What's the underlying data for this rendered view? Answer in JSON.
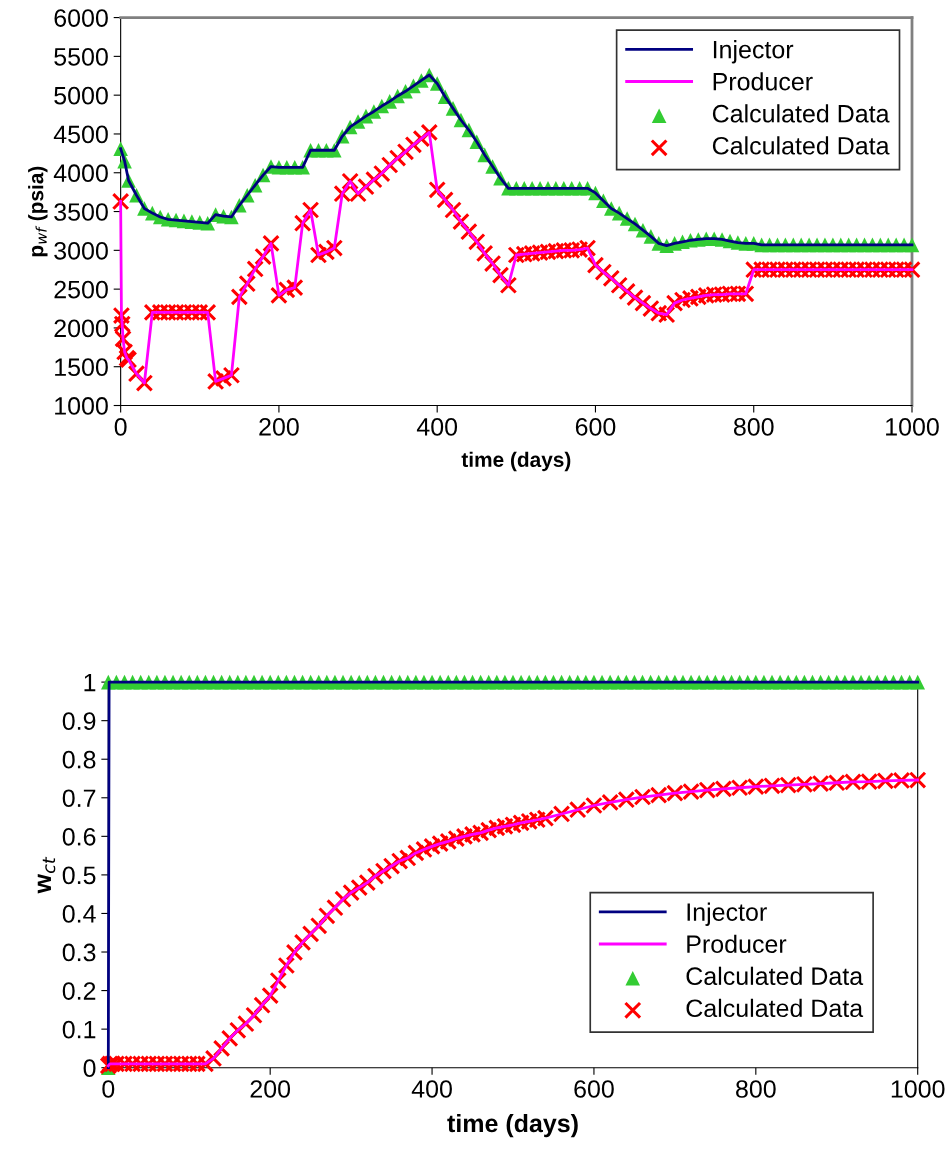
{
  "chart_data": [
    {
      "type": "line",
      "xlabel": "time (days)",
      "ylabel": "p$_{wf}$ (psia)",
      "xlim": [
        0,
        1000
      ],
      "xticks": [
        0,
        200,
        400,
        600,
        800,
        1000
      ],
      "ylim": [
        1000,
        6000
      ],
      "yticks": [
        1000,
        1500,
        2000,
        2500,
        3000,
        3500,
        4000,
        4500,
        5000,
        5500,
        6000
      ],
      "grid": false,
      "legend": "top right",
      "series": [
        {
          "name": "Injector",
          "color": "#000080",
          "marker": "none",
          "line_style": "solid",
          "x": [
            0,
            5,
            10,
            20,
            30,
            40,
            50,
            60,
            70,
            80,
            90,
            100,
            110,
            120,
            130,
            140,
            150,
            160,
            170,
            180,
            190,
            200,
            210,
            220,
            230,
            240,
            250,
            260,
            270,
            280,
            290,
            300,
            310,
            320,
            330,
            340,
            350,
            360,
            370,
            380,
            390,
            400,
            410,
            420,
            430,
            440,
            450,
            460,
            470,
            480,
            490,
            500,
            510,
            520,
            530,
            540,
            550,
            560,
            570,
            580,
            590,
            600,
            610,
            620,
            630,
            640,
            650,
            660,
            670,
            680,
            690,
            700,
            710,
            720,
            730,
            740,
            750,
            760,
            770,
            780,
            790,
            800,
            810,
            820,
            830,
            840,
            850,
            860,
            870,
            880,
            890,
            900,
            910,
            920,
            930,
            940,
            950,
            960,
            970,
            980,
            990,
            1000
          ],
          "values": [
            4310,
            4150,
            3900,
            3710,
            3540,
            3480,
            3430,
            3400,
            3390,
            3380,
            3370,
            3360,
            3350,
            3460,
            3440,
            3430,
            3580,
            3710,
            3840,
            3970,
            4080,
            4070,
            4070,
            4070,
            4070,
            4290,
            4290,
            4290,
            4290,
            4470,
            4590,
            4660,
            4730,
            4790,
            4860,
            4920,
            4990,
            5050,
            5120,
            5190,
            5260,
            5150,
            4980,
            4830,
            4680,
            4550,
            4400,
            4230,
            4080,
            3930,
            3800,
            3800,
            3800,
            3800,
            3800,
            3800,
            3800,
            3800,
            3800,
            3800,
            3800,
            3740,
            3640,
            3540,
            3480,
            3410,
            3340,
            3260,
            3180,
            3090,
            3060,
            3090,
            3110,
            3130,
            3140,
            3150,
            3150,
            3140,
            3120,
            3100,
            3090,
            3090,
            3070,
            3070,
            3070,
            3070,
            3070,
            3070,
            3070,
            3070,
            3070,
            3070,
            3070,
            3070,
            3070,
            3070,
            3070,
            3070,
            3070,
            3070,
            3070,
            3070
          ]
        },
        {
          "name": "Producer",
          "color": "#ff00ff",
          "marker": "none",
          "line_style": "solid",
          "x": [
            0,
            1,
            2,
            3,
            5,
            8,
            10,
            20,
            30,
            40,
            50,
            60,
            70,
            80,
            90,
            100,
            110,
            120,
            130,
            140,
            150,
            160,
            170,
            180,
            190,
            200,
            210,
            220,
            230,
            240,
            250,
            260,
            270,
            280,
            290,
            300,
            310,
            320,
            330,
            340,
            350,
            360,
            370,
            380,
            390,
            400,
            410,
            420,
            430,
            440,
            450,
            460,
            470,
            480,
            490,
            500,
            510,
            520,
            530,
            540,
            550,
            560,
            570,
            580,
            590,
            600,
            610,
            620,
            630,
            640,
            650,
            660,
            670,
            680,
            690,
            700,
            710,
            720,
            730,
            740,
            750,
            760,
            770,
            780,
            790,
            800,
            810,
            820,
            830,
            840,
            850,
            860,
            870,
            880,
            890,
            900,
            910,
            920,
            930,
            940,
            950,
            960,
            970,
            980,
            990,
            1000
          ],
          "values": [
            3630,
            2160,
            2050,
            1860,
            1690,
            1610,
            1590,
            1410,
            1290,
            2200,
            2200,
            2200,
            2200,
            2200,
            2200,
            2200,
            2200,
            1310,
            1350,
            1390,
            2400,
            2570,
            2760,
            2920,
            3090,
            2420,
            2490,
            2520,
            3350,
            3520,
            2940,
            2980,
            3030,
            3730,
            3890,
            3730,
            3820,
            3910,
            3990,
            4100,
            4190,
            4270,
            4360,
            4440,
            4520,
            3780,
            3650,
            3520,
            3370,
            3240,
            3110,
            2960,
            2830,
            2680,
            2550,
            2940,
            2950,
            2960,
            2970,
            2980,
            2990,
            3000,
            3000,
            3010,
            3030,
            2810,
            2720,
            2640,
            2550,
            2470,
            2390,
            2320,
            2250,
            2190,
            2170,
            2320,
            2360,
            2380,
            2400,
            2420,
            2430,
            2430,
            2440,
            2440,
            2440,
            2750,
            2750,
            2750,
            2750,
            2750,
            2750,
            2750,
            2750,
            2750,
            2750,
            2750,
            2750,
            2750,
            2750,
            2750,
            2750,
            2750,
            2750,
            2750,
            2750,
            2750
          ]
        },
        {
          "name": "Calculated Data",
          "type": "scatter",
          "color": "#33cc33",
          "marker": "triangle",
          "x": [
            0,
            5,
            10,
            20,
            30,
            40,
            50,
            60,
            70,
            80,
            90,
            100,
            110,
            120,
            130,
            140,
            150,
            160,
            170,
            180,
            190,
            200,
            210,
            220,
            230,
            240,
            250,
            260,
            270,
            280,
            290,
            300,
            310,
            320,
            330,
            340,
            350,
            360,
            370,
            380,
            390,
            400,
            410,
            420,
            430,
            440,
            450,
            460,
            470,
            480,
            490,
            500,
            510,
            520,
            530,
            540,
            550,
            560,
            570,
            580,
            590,
            600,
            610,
            620,
            630,
            640,
            650,
            660,
            670,
            680,
            690,
            700,
            710,
            720,
            730,
            740,
            750,
            760,
            770,
            780,
            790,
            800,
            810,
            820,
            830,
            840,
            850,
            860,
            870,
            880,
            890,
            900,
            910,
            920,
            930,
            940,
            950,
            960,
            970,
            980,
            990,
            1000
          ],
          "values": [
            4310,
            4150,
            3900,
            3710,
            3540,
            3480,
            3430,
            3400,
            3390,
            3380,
            3370,
            3360,
            3350,
            3460,
            3440,
            3430,
            3580,
            3710,
            3840,
            3970,
            4080,
            4070,
            4070,
            4070,
            4070,
            4290,
            4290,
            4290,
            4290,
            4470,
            4590,
            4660,
            4730,
            4790,
            4860,
            4920,
            4990,
            5050,
            5120,
            5190,
            5260,
            5150,
            4980,
            4830,
            4680,
            4550,
            4400,
            4230,
            4080,
            3930,
            3800,
            3800,
            3800,
            3800,
            3800,
            3800,
            3800,
            3800,
            3800,
            3800,
            3800,
            3740,
            3640,
            3540,
            3480,
            3410,
            3340,
            3260,
            3180,
            3090,
            3060,
            3090,
            3110,
            3130,
            3140,
            3150,
            3150,
            3140,
            3120,
            3100,
            3090,
            3090,
            3070,
            3070,
            3070,
            3070,
            3070,
            3070,
            3070,
            3070,
            3070,
            3070,
            3070,
            3070,
            3070,
            3070,
            3070,
            3070,
            3070,
            3070,
            3070,
            3070
          ]
        },
        {
          "name": "Calculated Data",
          "type": "scatter",
          "color": "#ff0000",
          "marker": "cross",
          "x": [
            0,
            1,
            2,
            3,
            5,
            8,
            10,
            20,
            30,
            40,
            50,
            60,
            70,
            80,
            90,
            100,
            110,
            120,
            130,
            140,
            150,
            160,
            170,
            180,
            190,
            200,
            210,
            220,
            230,
            240,
            250,
            260,
            270,
            280,
            290,
            300,
            310,
            320,
            330,
            340,
            350,
            360,
            370,
            380,
            390,
            400,
            410,
            420,
            430,
            440,
            450,
            460,
            470,
            480,
            490,
            500,
            510,
            520,
            530,
            540,
            550,
            560,
            570,
            580,
            590,
            600,
            610,
            620,
            630,
            640,
            650,
            660,
            670,
            680,
            690,
            700,
            710,
            720,
            730,
            740,
            750,
            760,
            770,
            780,
            790,
            800,
            810,
            820,
            830,
            840,
            850,
            860,
            870,
            880,
            890,
            900,
            910,
            920,
            930,
            940,
            950,
            960,
            970,
            980,
            990,
            1000
          ],
          "values": [
            3630,
            2160,
            2050,
            1860,
            1690,
            1610,
            1590,
            1410,
            1290,
            2200,
            2200,
            2200,
            2200,
            2200,
            2200,
            2200,
            2200,
            1310,
            1350,
            1390,
            2400,
            2570,
            2760,
            2920,
            3090,
            2420,
            2490,
            2520,
            3350,
            3520,
            2940,
            2980,
            3030,
            3730,
            3890,
            3730,
            3820,
            3910,
            3990,
            4100,
            4190,
            4270,
            4360,
            4440,
            4520,
            3780,
            3650,
            3520,
            3370,
            3240,
            3110,
            2960,
            2830,
            2680,
            2550,
            2940,
            2950,
            2960,
            2970,
            2980,
            2990,
            3000,
            3000,
            3010,
            3030,
            2810,
            2720,
            2640,
            2550,
            2470,
            2390,
            2320,
            2250,
            2190,
            2170,
            2320,
            2360,
            2380,
            2400,
            2420,
            2430,
            2430,
            2440,
            2440,
            2440,
            2750,
            2750,
            2750,
            2750,
            2750,
            2750,
            2750,
            2750,
            2750,
            2750,
            2750,
            2750,
            2750,
            2750,
            2750,
            2750,
            2750,
            2750,
            2750,
            2750,
            2750
          ]
        }
      ]
    },
    {
      "type": "line",
      "xlabel": "time (days)",
      "ylabel": "w$_{ct}$",
      "xlim": [
        0,
        1000
      ],
      "xticks": [
        0,
        200,
        400,
        600,
        800,
        1000
      ],
      "ylim": [
        0,
        1
      ],
      "yticks": [
        0,
        0.1,
        0.2,
        0.3,
        0.4,
        0.5,
        0.6,
        0.7,
        0.8,
        0.9,
        1
      ],
      "grid": false,
      "legend": "lower right",
      "series": [
        {
          "name": "Injector",
          "color": "#000080",
          "marker": "none",
          "line_style": "solid",
          "x": [
            0,
            1,
            1000
          ],
          "values": [
            0,
            1,
            1
          ]
        },
        {
          "name": "Producer",
          "color": "#ff00ff",
          "marker": "none",
          "line_style": "solid",
          "x": [
            0,
            2,
            5,
            10,
            20,
            30,
            40,
            50,
            60,
            70,
            80,
            90,
            100,
            110,
            120,
            130,
            140,
            150,
            160,
            170,
            180,
            190,
            200,
            210,
            220,
            230,
            240,
            250,
            260,
            270,
            280,
            290,
            300,
            310,
            320,
            330,
            340,
            350,
            360,
            370,
            380,
            390,
            400,
            410,
            420,
            430,
            440,
            450,
            460,
            470,
            480,
            490,
            500,
            510,
            520,
            530,
            540,
            560,
            580,
            600,
            620,
            640,
            660,
            680,
            700,
            720,
            740,
            760,
            780,
            800,
            820,
            840,
            860,
            880,
            900,
            920,
            940,
            960,
            980,
            1000
          ],
          "values": [
            0.005,
            0.01,
            0.01,
            0.01,
            0.01,
            0.01,
            0.01,
            0.01,
            0.01,
            0.01,
            0.01,
            0.01,
            0.01,
            0.01,
            0.01,
            0.024,
            0.05,
            0.076,
            0.097,
            0.114,
            0.136,
            0.162,
            0.187,
            0.226,
            0.265,
            0.299,
            0.325,
            0.347,
            0.368,
            0.394,
            0.415,
            0.437,
            0.454,
            0.467,
            0.48,
            0.497,
            0.51,
            0.523,
            0.536,
            0.544,
            0.557,
            0.566,
            0.574,
            0.581,
            0.587,
            0.594,
            0.6,
            0.605,
            0.609,
            0.616,
            0.622,
            0.626,
            0.63,
            0.635,
            0.639,
            0.643,
            0.647,
            0.658,
            0.669,
            0.68,
            0.688,
            0.695,
            0.702,
            0.707,
            0.712,
            0.716,
            0.72,
            0.723,
            0.726,
            0.729,
            0.731,
            0.733,
            0.735,
            0.737,
            0.739,
            0.741,
            0.742,
            0.744,
            0.745,
            0.746
          ]
        },
        {
          "name": "Calculated Data",
          "type": "scatter",
          "color": "#33cc33",
          "marker": "triangle",
          "x": [
            0,
            0,
            10,
            20,
            30,
            40,
            50,
            60,
            70,
            80,
            90,
            100,
            110,
            120,
            130,
            140,
            150,
            160,
            170,
            180,
            190,
            200,
            210,
            220,
            230,
            240,
            250,
            260,
            270,
            280,
            290,
            300,
            310,
            320,
            330,
            340,
            350,
            360,
            370,
            380,
            390,
            400,
            410,
            420,
            430,
            440,
            450,
            460,
            470,
            480,
            490,
            500,
            510,
            520,
            530,
            540,
            550,
            560,
            570,
            580,
            590,
            600,
            610,
            620,
            630,
            640,
            650,
            660,
            670,
            680,
            690,
            700,
            710,
            720,
            730,
            740,
            750,
            760,
            770,
            780,
            790,
            800,
            810,
            820,
            830,
            840,
            850,
            860,
            870,
            880,
            890,
            900,
            910,
            920,
            930,
            940,
            950,
            960,
            970,
            980,
            990,
            1000
          ],
          "values": [
            0,
            1,
            1,
            1,
            1,
            1,
            1,
            1,
            1,
            1,
            1,
            1,
            1,
            1,
            1,
            1,
            1,
            1,
            1,
            1,
            1,
            1,
            1,
            1,
            1,
            1,
            1,
            1,
            1,
            1,
            1,
            1,
            1,
            1,
            1,
            1,
            1,
            1,
            1,
            1,
            1,
            1,
            1,
            1,
            1,
            1,
            1,
            1,
            1,
            1,
            1,
            1,
            1,
            1,
            1,
            1,
            1,
            1,
            1,
            1,
            1,
            1,
            1,
            1,
            1,
            1,
            1,
            1,
            1,
            1,
            1,
            1,
            1,
            1,
            1,
            1,
            1,
            1,
            1,
            1,
            1,
            1,
            1,
            1,
            1,
            1,
            1,
            1,
            1,
            1,
            1,
            1,
            1,
            1,
            1,
            1,
            1,
            1,
            1,
            1,
            1,
            1
          ]
        },
        {
          "name": "Calculated Data",
          "type": "scatter",
          "color": "#ff0000",
          "marker": "cross",
          "x": [
            0,
            2,
            5,
            10,
            20,
            30,
            40,
            50,
            60,
            70,
            80,
            90,
            100,
            110,
            120,
            130,
            140,
            150,
            160,
            170,
            180,
            190,
            200,
            210,
            220,
            230,
            240,
            250,
            260,
            270,
            280,
            290,
            300,
            310,
            320,
            330,
            340,
            350,
            360,
            370,
            380,
            390,
            400,
            410,
            420,
            430,
            440,
            450,
            460,
            470,
            480,
            490,
            500,
            510,
            520,
            530,
            540,
            560,
            580,
            600,
            620,
            640,
            660,
            680,
            700,
            720,
            740,
            760,
            780,
            800,
            820,
            840,
            860,
            880,
            900,
            920,
            940,
            960,
            980,
            1000
          ],
          "values": [
            0.005,
            0.01,
            0.01,
            0.01,
            0.01,
            0.01,
            0.01,
            0.01,
            0.01,
            0.01,
            0.01,
            0.01,
            0.01,
            0.01,
            0.01,
            0.024,
            0.05,
            0.076,
            0.097,
            0.114,
            0.136,
            0.162,
            0.187,
            0.226,
            0.265,
            0.299,
            0.325,
            0.347,
            0.368,
            0.394,
            0.415,
            0.437,
            0.454,
            0.467,
            0.48,
            0.497,
            0.51,
            0.523,
            0.536,
            0.544,
            0.557,
            0.566,
            0.574,
            0.581,
            0.587,
            0.594,
            0.6,
            0.605,
            0.609,
            0.616,
            0.622,
            0.626,
            0.63,
            0.635,
            0.639,
            0.643,
            0.647,
            0.658,
            0.669,
            0.68,
            0.688,
            0.695,
            0.702,
            0.707,
            0.712,
            0.716,
            0.72,
            0.723,
            0.726,
            0.729,
            0.731,
            0.733,
            0.735,
            0.737,
            0.739,
            0.741,
            0.742,
            0.744,
            0.745,
            0.746
          ]
        }
      ]
    }
  ]
}
